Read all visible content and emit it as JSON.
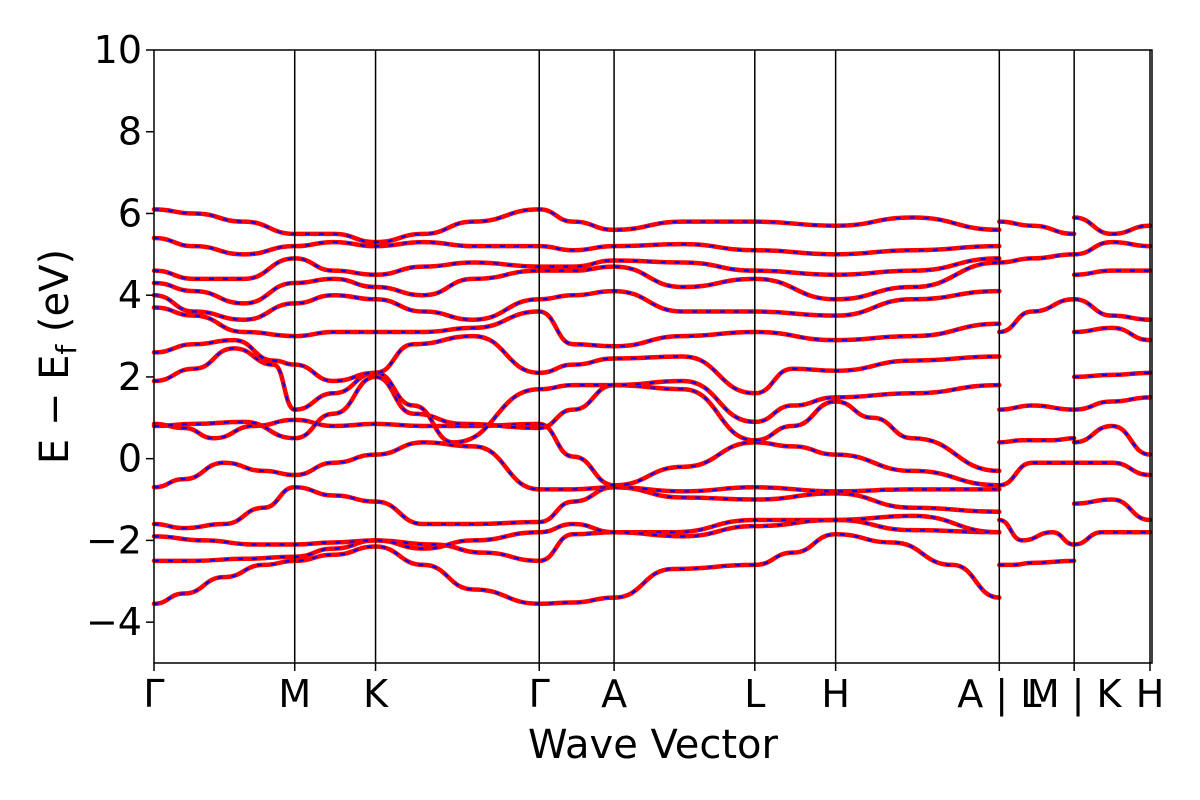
{
  "chart_data": {
    "type": "line",
    "title": "",
    "xlabel": "Wave Vector",
    "ylabel": {
      "main": "E − E",
      "sub": "f",
      "suffix": " (eV)"
    },
    "ylim": [
      -5,
      10
    ],
    "yticks": [
      "−4",
      "−2",
      "0",
      "2",
      "4",
      "6",
      "8",
      "10"
    ],
    "ytick_values": [
      -4,
      -2,
      0,
      2,
      4,
      6,
      8,
      10
    ],
    "xlim": [
      0,
      1000
    ],
    "xticks": [
      {
        "label": "Γ",
        "x": 0
      },
      {
        "label": "M",
        "x": 141
      },
      {
        "label": "K",
        "x": 222
      },
      {
        "label": "Γ",
        "x": 386
      },
      {
        "label": "A",
        "x": 461
      },
      {
        "label": "L",
        "x": 602
      },
      {
        "label": "H",
        "x": 683
      },
      {
        "label": "A | L",
        "x": 847
      },
      {
        "label": "M | K",
        "x": 922
      },
      {
        "label": "H",
        "x": 998
      }
    ],
    "grid": false,
    "legend": "none",
    "series_style": {
      "primary_color": "#ff0000",
      "overlay_color": "#0000ff",
      "overlay_dash": "dashed"
    },
    "series": [
      {
        "x": [
          0,
          30,
          70,
          110,
          141,
          180,
          222,
          270,
          320,
          386,
          420,
          461,
          520,
          602,
          640,
          683,
          740,
          800,
          847
        ],
        "y": [
          -3.55,
          -3.3,
          -2.9,
          -2.6,
          -2.5,
          -2.35,
          -2.15,
          -2.6,
          -3.2,
          -3.55,
          -3.52,
          -3.4,
          -2.7,
          -2.6,
          -2.3,
          -1.85,
          -2.05,
          -2.6,
          -3.4
        ]
      },
      {
        "x": [
          0,
          40,
          90,
          141,
          180,
          222,
          280,
          330,
          386,
          420,
          461,
          520,
          602,
          683,
          760,
          847
        ],
        "y": [
          -2.5,
          -2.5,
          -2.45,
          -2.4,
          -2.2,
          -2.0,
          -2.1,
          -2.3,
          -2.5,
          -1.85,
          -1.8,
          -1.8,
          -1.5,
          -1.5,
          -1.75,
          -1.8
        ]
      },
      {
        "x": [
          0,
          50,
          100,
          141,
          180,
          222,
          270,
          320,
          386,
          420,
          461,
          530,
          602,
          683,
          760,
          847
        ],
        "y": [
          -1.9,
          -2.0,
          -2.1,
          -2.1,
          -2.05,
          -2.0,
          -2.2,
          -2.0,
          -1.8,
          -1.6,
          -1.8,
          -1.9,
          -1.65,
          -1.5,
          -1.4,
          -1.8
        ]
      },
      {
        "x": [
          0,
          30,
          70,
          110,
          141,
          180,
          222,
          270,
          320,
          386,
          420,
          461,
          530,
          602,
          683,
          760,
          847
        ],
        "y": [
          -1.6,
          -1.7,
          -1.6,
          -1.2,
          -0.7,
          -0.9,
          -1.05,
          -1.6,
          -1.6,
          -1.55,
          -1.05,
          -0.7,
          -0.95,
          -1.0,
          -0.85,
          -1.2,
          -1.3
        ]
      },
      {
        "x": [
          0,
          30,
          70,
          110,
          141,
          180,
          222,
          270,
          320,
          386,
          420,
          461,
          530,
          602,
          683,
          760,
          847
        ],
        "y": [
          -0.7,
          -0.5,
          -0.1,
          -0.3,
          -0.4,
          -0.1,
          0.1,
          0.4,
          0.3,
          -0.75,
          -0.75,
          -0.7,
          -0.8,
          -0.7,
          -0.8,
          -0.75,
          -0.75
        ]
      },
      {
        "x": [
          0,
          30,
          60,
          100,
          141,
          180,
          222,
          270,
          320,
          386,
          420,
          461,
          530,
          602,
          640,
          683,
          760,
          847
        ],
        "y": [
          0.85,
          0.75,
          0.5,
          0.8,
          0.95,
          0.8,
          0.85,
          0.8,
          0.8,
          0.85,
          0.05,
          -0.65,
          -0.2,
          0.4,
          0.3,
          0.1,
          -0.3,
          -0.65
        ]
      },
      {
        "x": [
          0,
          40,
          90,
          141,
          180,
          222,
          260,
          310,
          386,
          420,
          461,
          530,
          602,
          640,
          683,
          720,
          760,
          847
        ],
        "y": [
          0.8,
          0.85,
          0.9,
          0.5,
          1.1,
          2.0,
          1.1,
          0.85,
          0.75,
          1.2,
          1.8,
          1.7,
          0.45,
          0.8,
          1.4,
          1.0,
          0.5,
          -0.3
        ]
      },
      {
        "x": [
          0,
          40,
          80,
          120,
          141,
          180,
          222,
          260,
          300,
          386,
          420,
          461,
          530,
          602,
          640,
          683,
          760,
          847
        ],
        "y": [
          1.9,
          2.2,
          2.7,
          2.3,
          1.2,
          1.6,
          2.1,
          1.3,
          0.4,
          1.7,
          1.8,
          1.8,
          1.9,
          0.9,
          1.3,
          1.5,
          1.6,
          1.8
        ]
      },
      {
        "x": [
          0,
          40,
          80,
          120,
          141,
          180,
          222,
          260,
          320,
          386,
          420,
          461,
          530,
          602,
          640,
          683,
          760,
          847
        ],
        "y": [
          2.6,
          2.8,
          2.9,
          2.4,
          2.3,
          1.9,
          2.1,
          2.8,
          3.0,
          2.1,
          2.3,
          2.45,
          2.5,
          1.6,
          2.2,
          2.15,
          2.4,
          2.5
        ]
      },
      {
        "x": [
          0,
          40,
          90,
          141,
          180,
          222,
          270,
          320,
          386,
          420,
          461,
          530,
          602,
          683,
          760,
          847
        ],
        "y": [
          3.7,
          3.5,
          3.1,
          3.0,
          3.1,
          3.1,
          3.1,
          3.2,
          3.6,
          2.8,
          2.75,
          3.0,
          3.1,
          2.9,
          3.0,
          3.3
        ]
      },
      {
        "x": [
          0,
          40,
          90,
          141,
          180,
          222,
          270,
          320,
          386,
          420,
          461,
          530,
          602,
          683,
          760,
          847
        ],
        "y": [
          4.0,
          3.6,
          3.4,
          3.8,
          4.0,
          3.9,
          3.6,
          3.4,
          3.9,
          4.0,
          4.1,
          3.6,
          3.6,
          3.5,
          3.9,
          4.1
        ]
      },
      {
        "x": [
          0,
          40,
          90,
          141,
          180,
          222,
          270,
          320,
          386,
          420,
          461,
          530,
          602,
          683,
          760,
          847
        ],
        "y": [
          4.3,
          4.1,
          3.8,
          4.3,
          4.4,
          4.2,
          4.0,
          4.4,
          4.6,
          4.6,
          4.7,
          4.2,
          4.4,
          3.9,
          4.2,
          4.8
        ]
      },
      {
        "x": [
          0,
          40,
          90,
          141,
          180,
          222,
          270,
          320,
          386,
          420,
          461,
          530,
          602,
          683,
          760,
          847
        ],
        "y": [
          4.6,
          4.4,
          4.4,
          4.9,
          4.6,
          4.5,
          4.7,
          4.8,
          4.7,
          4.7,
          4.85,
          4.8,
          4.6,
          4.5,
          4.6,
          4.9
        ]
      },
      {
        "x": [
          0,
          40,
          90,
          141,
          180,
          222,
          270,
          320,
          386,
          420,
          461,
          530,
          602,
          683,
          760,
          847
        ],
        "y": [
          5.4,
          5.2,
          5.0,
          5.2,
          5.3,
          5.2,
          5.3,
          5.2,
          5.2,
          5.1,
          5.2,
          5.25,
          5.1,
          5.0,
          5.1,
          5.2
        ]
      },
      {
        "x": [
          0,
          40,
          90,
          141,
          180,
          222,
          270,
          320,
          386,
          420,
          461,
          530,
          602,
          683,
          760,
          847
        ],
        "y": [
          6.1,
          6.0,
          5.8,
          5.5,
          5.5,
          5.3,
          5.5,
          5.8,
          6.1,
          5.8,
          5.6,
          5.8,
          5.8,
          5.7,
          5.9,
          5.6
        ]
      },
      {
        "x": [
          847,
          860,
          880,
          922
        ],
        "y": [
          -2.6,
          -2.6,
          -2.55,
          -2.5
        ]
      },
      {
        "x": [
          847,
          870,
          900,
          922
        ],
        "y": [
          -1.5,
          -2.0,
          -1.8,
          -2.1
        ]
      },
      {
        "x": [
          847,
          880,
          922
        ],
        "y": [
          -0.65,
          -0.1,
          -0.1
        ]
      },
      {
        "x": [
          847,
          870,
          900,
          922
        ],
        "y": [
          0.4,
          0.45,
          0.45,
          0.5
        ]
      },
      {
        "x": [
          847,
          880,
          922
        ],
        "y": [
          1.2,
          1.3,
          1.2
        ]
      },
      {
        "x": [
          847,
          880,
          922
        ],
        "y": [
          3.1,
          3.6,
          3.9
        ]
      },
      {
        "x": [
          847,
          880,
          922
        ],
        "y": [
          4.8,
          4.9,
          5.0
        ]
      },
      {
        "x": [
          847,
          880,
          922
        ],
        "y": [
          5.8,
          5.7,
          5.5
        ]
      },
      {
        "x": [
          922,
          950,
          998
        ],
        "y": [
          -2.1,
          -1.8,
          -1.8
        ]
      },
      {
        "x": [
          922,
          960,
          998
        ],
        "y": [
          -1.1,
          -1.0,
          -1.5
        ]
      },
      {
        "x": [
          922,
          960,
          998
        ],
        "y": [
          -0.1,
          -0.1,
          -0.4
        ]
      },
      {
        "x": [
          922,
          960,
          998
        ],
        "y": [
          0.4,
          0.8,
          0.1
        ]
      },
      {
        "x": [
          922,
          960,
          998
        ],
        "y": [
          1.2,
          1.4,
          1.5
        ]
      },
      {
        "x": [
          922,
          960,
          998
        ],
        "y": [
          2.0,
          2.05,
          2.1
        ]
      },
      {
        "x": [
          922,
          960,
          998
        ],
        "y": [
          3.1,
          3.2,
          2.9
        ]
      },
      {
        "x": [
          922,
          960,
          998
        ],
        "y": [
          3.9,
          3.5,
          3.4
        ]
      },
      {
        "x": [
          922,
          960,
          998
        ],
        "y": [
          4.5,
          4.6,
          4.6
        ]
      },
      {
        "x": [
          922,
          960,
          998
        ],
        "y": [
          5.0,
          5.3,
          5.2
        ]
      },
      {
        "x": [
          922,
          960,
          998
        ],
        "y": [
          5.9,
          5.5,
          5.7
        ]
      }
    ]
  }
}
